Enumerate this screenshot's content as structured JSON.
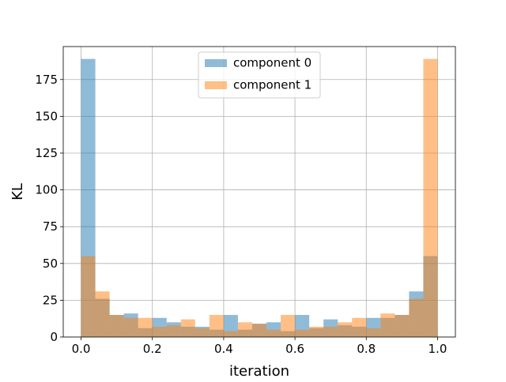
{
  "chart_data": {
    "type": "histogram",
    "xlabel": "iteration",
    "ylabel": "KL",
    "bins": [
      0,
      0.04,
      0.08,
      0.12,
      0.16,
      0.2,
      0.24,
      0.28,
      0.32,
      0.36,
      0.4,
      0.44,
      0.48,
      0.52,
      0.56,
      0.6,
      0.64,
      0.68,
      0.72,
      0.76,
      0.8,
      0.84,
      0.88,
      0.92,
      0.96,
      1
    ],
    "series": [
      {
        "name": "component 0",
        "color": "#1f77b4",
        "values": [
          189,
          26,
          15,
          16,
          6,
          13,
          10,
          7,
          7,
          5,
          15,
          5,
          9,
          10,
          4,
          15,
          6,
          12,
          8,
          7,
          13,
          13,
          15,
          31,
          55
        ]
      },
      {
        "name": "component 1",
        "color": "#ff7f0e",
        "values": [
          55,
          31,
          15,
          13,
          13,
          7,
          8,
          12,
          6,
          15,
          4,
          10,
          9,
          5,
          15,
          5,
          7,
          7,
          10,
          13,
          6,
          16,
          15,
          26,
          189
        ]
      }
    ],
    "alpha": 0.5,
    "xlim": [
      -0.05,
      1.05
    ],
    "ylim": [
      0,
      197.4
    ],
    "xticks": [
      {
        "value": 0,
        "label": "0.0"
      },
      0.2,
      0.4,
      0.6,
      0.8,
      {
        "value": 1,
        "label": "1.0"
      }
    ],
    "yticks": [
      0,
      25,
      50,
      75,
      100,
      125,
      150,
      175
    ],
    "grid": true,
    "legend": "upper center"
  }
}
